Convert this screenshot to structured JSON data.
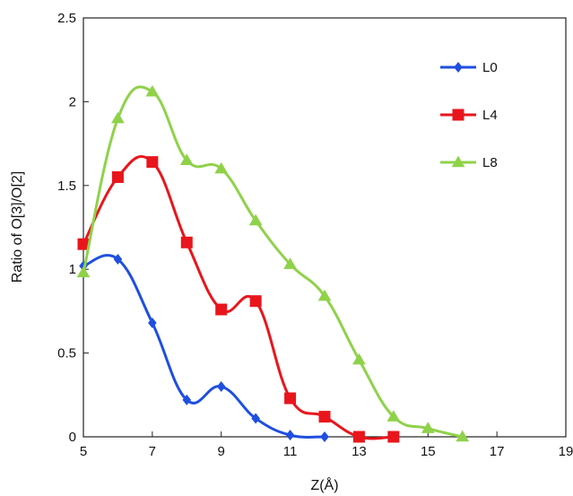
{
  "chart_data": {
    "type": "line",
    "xlabel": "Z(Å)",
    "ylabel": "Ratio of O[3]/O[2]",
    "xlim": [
      5,
      19
    ],
    "ylim": [
      0,
      2.5
    ],
    "xticks": [
      5,
      7,
      9,
      11,
      13,
      15,
      17,
      19
    ],
    "yticks": [
      0,
      0.5,
      1,
      1.5,
      2,
      2.5
    ],
    "grid": false,
    "legend_position": "top-right",
    "smooth": true,
    "series": [
      {
        "name": "L0",
        "color": "#1f4fe0",
        "marker": "diamond",
        "x": [
          5,
          6,
          7,
          8,
          9,
          10,
          11,
          12
        ],
        "y": [
          1.02,
          1.06,
          0.68,
          0.22,
          0.3,
          0.11,
          0.01,
          0.0
        ]
      },
      {
        "name": "L4",
        "color": "#e8161c",
        "marker": "square",
        "x": [
          5,
          6,
          7,
          8,
          9,
          10,
          11,
          12,
          13,
          14
        ],
        "y": [
          1.15,
          1.55,
          1.64,
          1.16,
          0.76,
          0.81,
          0.23,
          0.12,
          0.0,
          0.0
        ]
      },
      {
        "name": "L8",
        "color": "#8fd24a",
        "marker": "triangle",
        "x": [
          5,
          6,
          7,
          8,
          9,
          10,
          11,
          12,
          13,
          14,
          15,
          16
        ],
        "y": [
          0.98,
          1.9,
          2.06,
          1.65,
          1.6,
          1.29,
          1.03,
          0.84,
          0.46,
          0.12,
          0.05,
          0.0
        ]
      }
    ]
  }
}
